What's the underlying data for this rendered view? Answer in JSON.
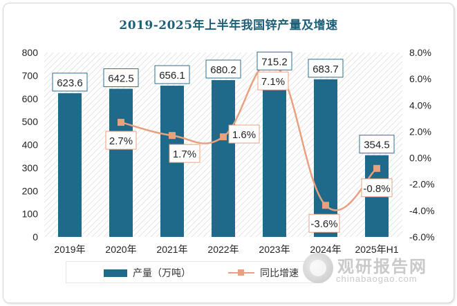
{
  "chart_data": {
    "type": "bar+line",
    "title": "2019-2025年上半年我国锌产量及增速",
    "categories": [
      "2019年",
      "2020年",
      "2021年",
      "2022年",
      "2023年",
      "2024年",
      "2025年H1"
    ],
    "series": [
      {
        "name": "产量（万吨）",
        "type": "bar",
        "axis": "left",
        "values": [
          623.6,
          642.5,
          656.1,
          680.2,
          715.2,
          683.7,
          354.5
        ],
        "labels": [
          "623.6",
          "642.5",
          "656.1",
          "680.2",
          "715.2",
          "683.7",
          "354.5"
        ],
        "color": "#1f6a8a"
      },
      {
        "name": "同比增速",
        "type": "line",
        "axis": "right",
        "values": [
          null,
          2.7,
          1.7,
          1.6,
          7.1,
          -3.6,
          -0.8
        ],
        "labels": [
          "",
          "2.7%",
          "1.7%",
          "1.6%",
          "7.1%",
          "-3.6%",
          "-0.8%"
        ],
        "color": "#e8a07e"
      }
    ],
    "y_left": {
      "min": 0,
      "max": 800,
      "step": 100,
      "ticks": [
        "0",
        "100",
        "200",
        "300",
        "400",
        "500",
        "600",
        "700",
        "800"
      ]
    },
    "y_right": {
      "min": -6,
      "max": 8,
      "step": 2,
      "ticks": [
        "-6.0%",
        "-4.0%",
        "-2.0%",
        "0.0%",
        "2.0%",
        "4.0%",
        "6.0%",
        "8.0%"
      ]
    },
    "legend_position": "bottom-left"
  },
  "watermark": {
    "cn": "观研报告网",
    "en": "chinabaogao.com"
  }
}
